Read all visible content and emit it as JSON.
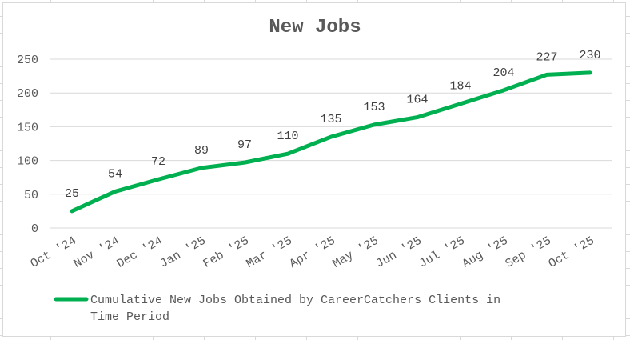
{
  "chart_data": {
    "type": "line",
    "title": "New Jobs",
    "xlabel": "",
    "ylabel": "",
    "categories": [
      "Oct '24",
      "Nov '24",
      "Dec '24",
      "Jan '25",
      "Feb '25",
      "Mar '25",
      "Apr '25",
      "May '25",
      "Jun '25",
      "Jul '25",
      "Aug '25",
      "Sep '25",
      "Oct '25"
    ],
    "series": [
      {
        "name": "Cumulative New Jobs Obtained by CareerCatchers Clients in Time Period",
        "color": "#00b050",
        "values": [
          25,
          54,
          72,
          89,
          97,
          110,
          135,
          153,
          164,
          184,
          204,
          227,
          230
        ]
      }
    ],
    "y_ticks": [
      "0",
      "50",
      "100",
      "150",
      "200",
      "250"
    ],
    "ylim": [
      0,
      250
    ],
    "grid": true,
    "legend_position": "bottom-left",
    "legend_lines": [
      "Cumulative New Jobs Obtained by CareerCatchers Clients in",
      "Time Period"
    ]
  }
}
